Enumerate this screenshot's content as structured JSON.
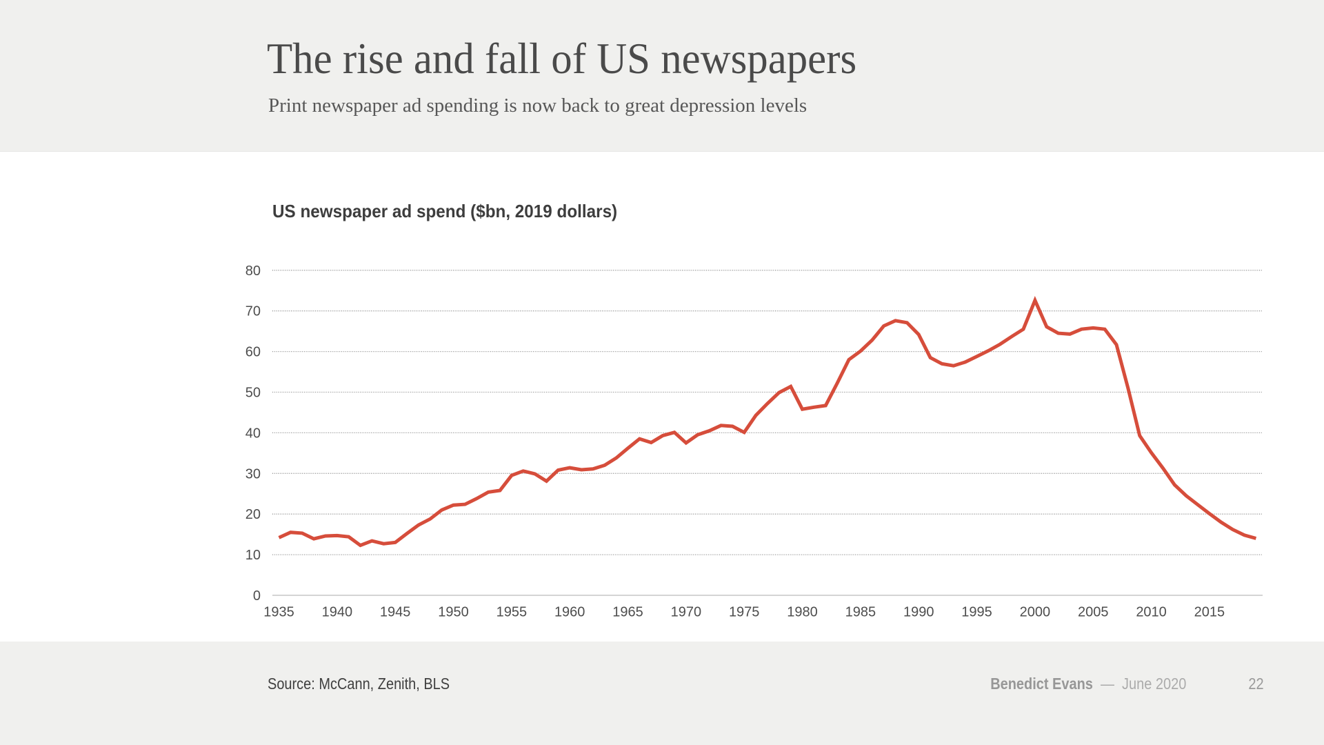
{
  "header": {
    "title": "The rise and fall of US newspapers",
    "subtitle": "Print newspaper ad spending is now back to great depression levels"
  },
  "chart_data": {
    "type": "line",
    "title": "US newspaper ad spend ($bn, 2019 dollars)",
    "series_name": "US newspaper ad spend",
    "x": [
      1935,
      1936,
      1937,
      1938,
      1939,
      1940,
      1941,
      1942,
      1943,
      1944,
      1945,
      1946,
      1947,
      1948,
      1949,
      1950,
      1951,
      1952,
      1953,
      1954,
      1955,
      1956,
      1957,
      1958,
      1959,
      1960,
      1961,
      1962,
      1963,
      1964,
      1965,
      1966,
      1967,
      1968,
      1969,
      1970,
      1971,
      1972,
      1973,
      1974,
      1975,
      1976,
      1977,
      1978,
      1979,
      1980,
      1981,
      1982,
      1983,
      1984,
      1985,
      1986,
      1987,
      1988,
      1989,
      1990,
      1991,
      1992,
      1993,
      1994,
      1995,
      1996,
      1997,
      1998,
      1999,
      2000,
      2001,
      2002,
      2003,
      2004,
      2005,
      2006,
      2007,
      2008,
      2009,
      2010,
      2011,
      2012,
      2013,
      2014,
      2015,
      2016,
      2017,
      2018,
      2019
    ],
    "values": [
      14.2,
      15.5,
      15.3,
      13.9,
      14.6,
      14.7,
      14.4,
      12.3,
      13.4,
      12.7,
      13.0,
      15.2,
      17.3,
      18.8,
      21.0,
      22.2,
      22.4,
      23.8,
      25.4,
      25.8,
      29.5,
      30.6,
      29.9,
      28.1,
      30.8,
      31.4,
      30.9,
      31.1,
      32.0,
      33.8,
      36.2,
      38.5,
      37.6,
      39.3,
      40.1,
      37.5,
      39.5,
      40.5,
      41.8,
      41.6,
      40.1,
      44.3,
      47.2,
      49.9,
      51.4,
      45.8,
      46.3,
      46.7,
      52.2,
      58.0,
      60.1,
      62.8,
      66.3,
      67.6,
      67.1,
      64.2,
      58.5,
      57.0,
      56.5,
      57.4,
      58.8,
      60.2,
      61.8,
      63.7,
      65.5,
      72.6,
      66.1,
      64.5,
      64.3,
      65.5,
      65.8,
      65.5,
      61.7,
      51.0,
      39.3,
      35.1,
      31.3,
      27.2,
      24.5,
      22.3,
      20.1,
      18.0,
      16.2,
      14.8,
      14.0
    ],
    "xlabel": "",
    "ylabel": "",
    "ylim": [
      0,
      80
    ],
    "y_ticks": [
      0,
      10,
      20,
      30,
      40,
      50,
      60,
      70,
      80
    ],
    "x_ticks": [
      1935,
      1940,
      1945,
      1950,
      1955,
      1960,
      1965,
      1970,
      1975,
      1980,
      1985,
      1990,
      1995,
      2000,
      2005,
      2010,
      2015
    ],
    "grid": "horizontal-dotted",
    "legend": "none",
    "line_color": "#d64d3b",
    "axis_color": "#c6c6c6",
    "grid_color": "#8f8f8f",
    "tick_label_color": "#4d4d4d"
  },
  "footer": {
    "source": "Source: McCann, Zenith, BLS",
    "author": "Benedict Evans",
    "dash": "—",
    "date": "June 2020",
    "page_number": "22"
  }
}
